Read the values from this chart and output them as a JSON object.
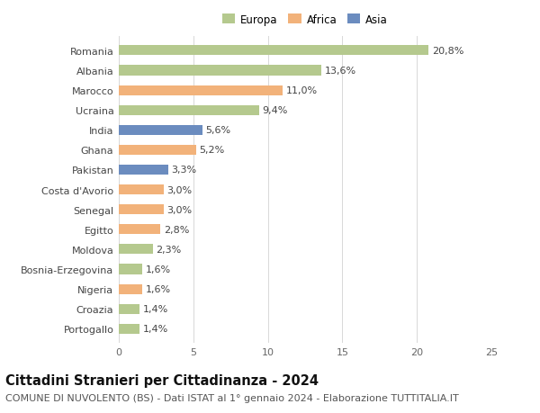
{
  "countries": [
    "Romania",
    "Albania",
    "Marocco",
    "Ucraina",
    "India",
    "Ghana",
    "Pakistan",
    "Costa d'Avorio",
    "Senegal",
    "Egitto",
    "Moldova",
    "Bosnia-Erzegovina",
    "Nigeria",
    "Croazia",
    "Portogallo"
  ],
  "values": [
    20.8,
    13.6,
    11.0,
    9.4,
    5.6,
    5.2,
    3.3,
    3.0,
    3.0,
    2.8,
    2.3,
    1.6,
    1.6,
    1.4,
    1.4
  ],
  "continents": [
    "Europa",
    "Europa",
    "Africa",
    "Europa",
    "Asia",
    "Africa",
    "Asia",
    "Africa",
    "Africa",
    "Africa",
    "Europa",
    "Europa",
    "Africa",
    "Europa",
    "Europa"
  ],
  "colors": {
    "Europa": "#b5c98e",
    "Africa": "#f2b27a",
    "Asia": "#6b8cbf"
  },
  "legend_labels": [
    "Europa",
    "Africa",
    "Asia"
  ],
  "legend_colors": [
    "#b5c98e",
    "#f2b27a",
    "#6b8cbf"
  ],
  "xlim": [
    0,
    25
  ],
  "xticks": [
    0,
    5,
    10,
    15,
    20,
    25
  ],
  "title": "Cittadini Stranieri per Cittadinanza - 2024",
  "subtitle": "COMUNE DI NUVOLENTO (BS) - Dati ISTAT al 1° gennaio 2024 - Elaborazione TUTTITALIA.IT",
  "title_fontsize": 10.5,
  "subtitle_fontsize": 8.0,
  "label_fontsize": 8.0,
  "tick_fontsize": 8.0,
  "value_fontsize": 8.0,
  "background_color": "#ffffff",
  "grid_color": "#d8d8d8",
  "bar_height": 0.5
}
